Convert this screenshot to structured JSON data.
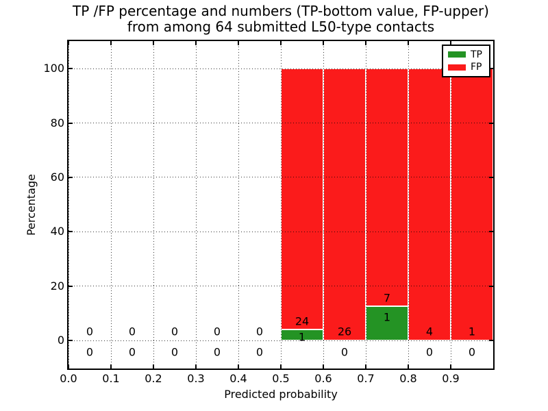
{
  "title": {
    "line1": "TP /FP percentage and numbers (TP-bottom value, FP-upper)",
    "line2": "from among 64 submitted L50-type contacts"
  },
  "legend": {
    "items": [
      {
        "label": "TP",
        "color": "#249324"
      },
      {
        "label": "FP",
        "color": "#fb1b1b"
      }
    ]
  },
  "chart_data": {
    "type": "bar",
    "title": "TP /FP percentage and numbers (TP-bottom value, FP-upper)\nfrom among 64 submitted L50-type contacts",
    "xlabel": "Predicted probability",
    "ylabel": "Percentage",
    "xlim": [
      0.0,
      1.0
    ],
    "ylim": [
      -10.3,
      110.1
    ],
    "xticks": [
      0.0,
      0.1,
      0.2,
      0.3,
      0.4,
      0.5,
      0.6,
      0.7,
      0.8,
      0.9
    ],
    "yticks": [
      0,
      20,
      40,
      60,
      80,
      100
    ],
    "grid": true,
    "grid_style": "dotted",
    "legend_position": "upper-right",
    "total_contacts": 64,
    "colors": {
      "tp": "#249324",
      "fp": "#fb1b1b",
      "bar_edge": "#ffffff"
    },
    "series": [
      {
        "name": "TP",
        "stack_order": "bottom"
      },
      {
        "name": "FP",
        "stack_order": "top"
      }
    ],
    "bins": [
      {
        "range": [
          0.0,
          0.1
        ],
        "tp": 0,
        "fp": 0,
        "tp_pct": 0,
        "fp_pct": 0
      },
      {
        "range": [
          0.1,
          0.2
        ],
        "tp": 0,
        "fp": 0,
        "tp_pct": 0,
        "fp_pct": 0
      },
      {
        "range": [
          0.2,
          0.3
        ],
        "tp": 0,
        "fp": 0,
        "tp_pct": 0,
        "fp_pct": 0
      },
      {
        "range": [
          0.3,
          0.4
        ],
        "tp": 0,
        "fp": 0,
        "tp_pct": 0,
        "fp_pct": 0
      },
      {
        "range": [
          0.4,
          0.5
        ],
        "tp": 0,
        "fp": 0,
        "tp_pct": 0,
        "fp_pct": 0
      },
      {
        "range": [
          0.5,
          0.6
        ],
        "tp": 1,
        "fp": 24,
        "tp_pct": 4.0,
        "fp_pct": 96.0
      },
      {
        "range": [
          0.6,
          0.7
        ],
        "tp": 0,
        "fp": 26,
        "tp_pct": 0,
        "fp_pct": 100
      },
      {
        "range": [
          0.7,
          0.8
        ],
        "tp": 1,
        "fp": 7,
        "tp_pct": 12.5,
        "fp_pct": 87.5
      },
      {
        "range": [
          0.8,
          0.9
        ],
        "tp": 0,
        "fp": 4,
        "tp_pct": 0,
        "fp_pct": 100
      },
      {
        "range": [
          0.9,
          1.0
        ],
        "tp": 0,
        "fp": 1,
        "tp_pct": 0,
        "fp_pct": 100
      }
    ],
    "annotations": [
      {
        "text": "0",
        "x": 0.05,
        "y": 3.3
      },
      {
        "text": "0",
        "x": 0.15,
        "y": 3.3
      },
      {
        "text": "0",
        "x": 0.25,
        "y": 3.3
      },
      {
        "text": "0",
        "x": 0.35,
        "y": 3.3
      },
      {
        "text": "0",
        "x": 0.45,
        "y": 3.3
      },
      {
        "text": "24",
        "x": 0.55,
        "y": 7.1
      },
      {
        "text": "26",
        "x": 0.65,
        "y": 3.3
      },
      {
        "text": "7",
        "x": 0.75,
        "y": 15.7
      },
      {
        "text": "4",
        "x": 0.85,
        "y": 3.3
      },
      {
        "text": "1",
        "x": 0.95,
        "y": 3.3
      },
      {
        "text": "0",
        "x": 0.05,
        "y": -4.2
      },
      {
        "text": "0",
        "x": 0.15,
        "y": -4.2
      },
      {
        "text": "0",
        "x": 0.25,
        "y": -4.2
      },
      {
        "text": "0",
        "x": 0.35,
        "y": -4.2
      },
      {
        "text": "0",
        "x": 0.45,
        "y": -4.2
      },
      {
        "text": "1",
        "x": 0.55,
        "y": 1.4
      },
      {
        "text": "0",
        "x": 0.65,
        "y": -4.2
      },
      {
        "text": "1",
        "x": 0.75,
        "y": 8.6
      },
      {
        "text": "0",
        "x": 0.85,
        "y": -4.2
      },
      {
        "text": "0",
        "x": 0.95,
        "y": -4.2
      }
    ]
  }
}
